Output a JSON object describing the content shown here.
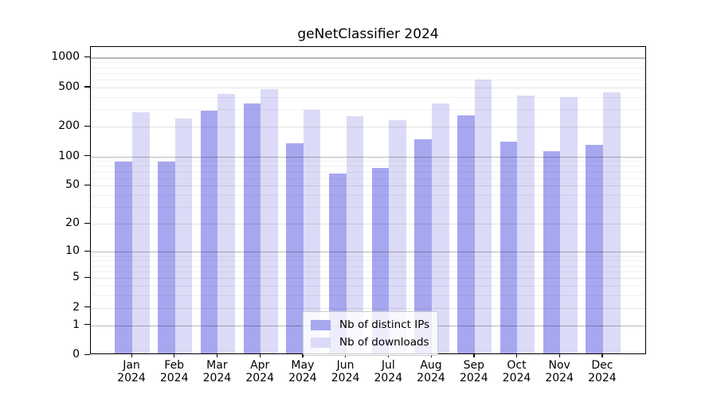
{
  "title": "geNetClassifier 2024",
  "chart_data": {
    "type": "bar",
    "title": "geNetClassifier 2024",
    "categories": [
      "Jan 2024",
      "Feb 2024",
      "Mar 2024",
      "Apr 2024",
      "May 2024",
      "Jun 2024",
      "Jul 2024",
      "Aug 2024",
      "Sep 2024",
      "Oct 2024",
      "Nov 2024",
      "Dec 2024"
    ],
    "series": [
      {
        "name": "Nb of distinct IPs",
        "color": "#a7a7f0",
        "values": [
          85,
          86,
          280,
          330,
          132,
          65,
          74,
          145,
          250,
          137,
          108,
          127
        ]
      },
      {
        "name": "Nb of downloads",
        "color": "#dbdbf7",
        "values": [
          270,
          235,
          415,
          460,
          285,
          245,
          225,
          330,
          580,
          400,
          385,
          430
        ]
      }
    ],
    "xlabel": "",
    "ylabel": "",
    "y_scale": "log1p",
    "ylim": [
      0,
      1000
    ],
    "y_ticks": [
      0,
      1,
      2,
      5,
      10,
      20,
      50,
      100,
      200,
      500,
      1000
    ],
    "y_decade_gridlines": [
      1,
      10,
      100,
      1000
    ],
    "y_minor_gridlines": [
      3,
      4,
      6,
      7,
      8,
      9,
      30,
      40,
      60,
      70,
      80,
      90,
      300,
      400,
      600,
      700,
      800,
      900
    ],
    "grid": true,
    "legend_position": "lower center"
  },
  "colors": {
    "background": "#ffffff",
    "frame": "#000000",
    "bar_distinct_ips": "#a7a7f0",
    "bar_downloads": "#dbdbf7"
  }
}
